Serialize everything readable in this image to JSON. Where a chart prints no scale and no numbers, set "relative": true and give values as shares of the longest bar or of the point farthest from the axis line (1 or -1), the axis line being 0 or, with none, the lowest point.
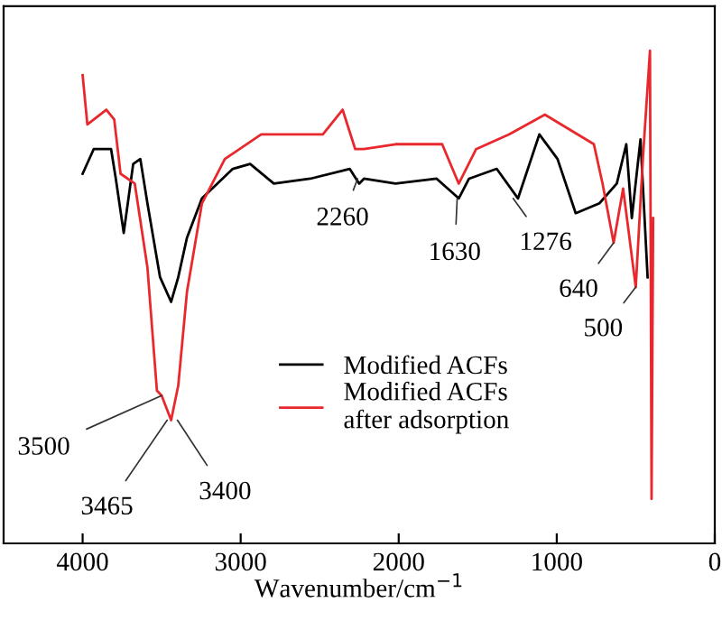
{
  "chart_data": {
    "type": "line",
    "relative": true,
    "xlabel": "Wavenumber/cm$^{−1}$",
    "xlim": [
      4500,
      0
    ],
    "xticks": [
      4000,
      3000,
      2000,
      1000,
      0
    ],
    "legend": "bottom",
    "grid": false,
    "series": [
      {
        "name": "Modified ACFs",
        "color": "#000000",
        "x": [
          4000,
          3930,
          3820,
          3790,
          3740,
          3680,
          3635,
          3590,
          3510,
          3440,
          3395,
          3340,
          3245,
          3050,
          2940,
          2790,
          2560,
          2310,
          2250,
          2220,
          2020,
          1760,
          1620,
          1555,
          1380,
          1245,
          1110,
          995,
          880,
          730,
          620,
          560,
          525,
          470,
          425
        ],
        "values": [
          0.75,
          0.8,
          0.8,
          0.74,
          0.63,
          0.77,
          0.78,
          0.69,
          0.54,
          0.49,
          0.54,
          0.62,
          0.7,
          0.76,
          0.77,
          0.73,
          0.74,
          0.76,
          0.73,
          0.74,
          0.73,
          0.74,
          0.7,
          0.74,
          0.76,
          0.7,
          0.83,
          0.78,
          0.67,
          0.69,
          0.73,
          0.81,
          0.66,
          0.82,
          0.54
        ]
      },
      {
        "name": "Modified ACFs\nafter adsorption",
        "color": "#e8282c",
        "x": [
          4000,
          3970,
          3850,
          3800,
          3760,
          3670,
          3590,
          3530,
          3500,
          3440,
          3395,
          3340,
          3245,
          3100,
          2870,
          2480,
          2355,
          2275,
          2220,
          2020,
          1725,
          1620,
          1510,
          1300,
          1075,
          765,
          710,
          640,
          580,
          500,
          455,
          410,
          400,
          390
        ],
        "values": [
          0.95,
          0.85,
          0.88,
          0.86,
          0.75,
          0.73,
          0.56,
          0.31,
          0.3,
          0.25,
          0.32,
          0.51,
          0.69,
          0.78,
          0.83,
          0.83,
          0.88,
          0.8,
          0.8,
          0.81,
          0.81,
          0.73,
          0.8,
          0.83,
          0.87,
          0.81,
          0.73,
          0.61,
          0.72,
          0.52,
          0.78,
          1.0,
          0.09,
          0.66
        ]
      }
    ],
    "annotations": [
      {
        "text": "2260",
        "x": 2260,
        "y": 0.74
      },
      {
        "text": "1630",
        "x": 1630,
        "y": 0.7
      },
      {
        "text": "1276",
        "x": 1276,
        "y": 0.7
      },
      {
        "text": "640",
        "x": 640,
        "y": 0.61
      },
      {
        "text": "500",
        "x": 500,
        "y": 0.52
      },
      {
        "text": "3500",
        "x": 3500,
        "y": 0.3
      },
      {
        "text": "3465",
        "x": 3465,
        "y": 0.25
      },
      {
        "text": "3400",
        "x": 3400,
        "y": 0.25
      }
    ]
  }
}
